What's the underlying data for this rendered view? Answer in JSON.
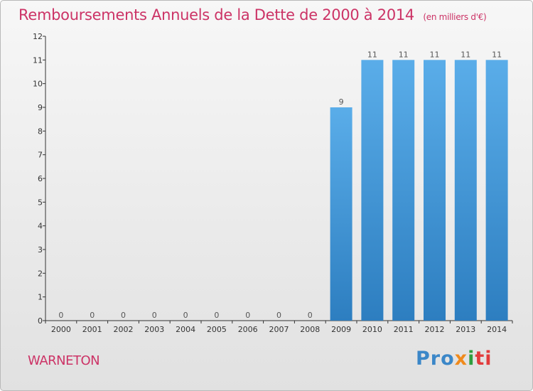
{
  "header": {
    "title": "Remboursements Annuels de la Dette de 2000 à 2014",
    "unit": "(en milliers d'€)"
  },
  "footer": {
    "commune": "WARNETON",
    "logo": [
      "Pro",
      "x",
      "i",
      "ti"
    ]
  },
  "colors": {
    "title": "#cc3366",
    "bar_light": "#5aade9",
    "bar_dark": "#2d7ec0",
    "axis": "#333333"
  },
  "chart_data": {
    "type": "bar",
    "categories": [
      "2000",
      "2001",
      "2002",
      "2003",
      "2004",
      "2005",
      "2006",
      "2007",
      "2008",
      "2009",
      "2010",
      "2011",
      "2012",
      "2013",
      "2014"
    ],
    "values": [
      0,
      0,
      0,
      0,
      0,
      0,
      0,
      0,
      0,
      9,
      11,
      11,
      11,
      11,
      11
    ],
    "data_labels": [
      "0",
      "0",
      "0",
      "0",
      "0",
      "0",
      "0",
      "0",
      "0",
      "9",
      "11",
      "11",
      "11",
      "11",
      "11"
    ],
    "yticks": [
      0,
      1,
      2,
      3,
      4,
      5,
      6,
      7,
      8,
      9,
      10,
      11,
      12
    ],
    "ylim": [
      0,
      12
    ],
    "title": "Remboursements Annuels de la Dette de 2000 à 2014",
    "xlabel": "",
    "ylabel": "",
    "grid": false
  }
}
